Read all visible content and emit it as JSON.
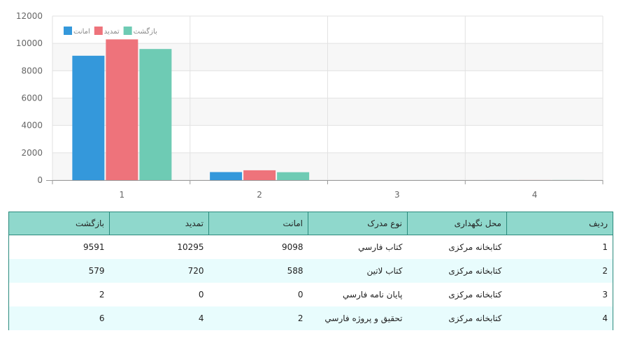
{
  "chart_data": {
    "type": "bar",
    "categories": [
      "1",
      "2",
      "3",
      "4"
    ],
    "series": [
      {
        "name": "امانت",
        "values": [
          9098,
          588,
          0,
          2
        ],
        "color": "#3498db"
      },
      {
        "name": "تمديد",
        "values": [
          10295,
          720,
          0,
          4
        ],
        "color": "#ee737b"
      },
      {
        "name": "بازگشت",
        "values": [
          9591,
          579,
          2,
          6
        ],
        "color": "#6ecbb4"
      }
    ],
    "ylim": [
      0,
      12000
    ],
    "yticks": [
      "0",
      "2000",
      "4000",
      "6000",
      "8000",
      "10000",
      "12000"
    ],
    "grid": true,
    "legend_position": "top-left"
  },
  "table": {
    "headers": [
      "رديف",
      "محل نگهداری",
      "نوع مدرک",
      "امانت",
      "تمديد",
      "بازگشت"
    ],
    "rows": [
      [
        "1",
        "كتابخانه مركزی",
        "كتاب فارسي",
        "9098",
        "10295",
        "9591"
      ],
      [
        "2",
        "كتابخانه مركزی",
        "كتاب لاتين",
        "588",
        "720",
        "579"
      ],
      [
        "3",
        "كتابخانه مركزی",
        "پايان نامه فارسي",
        "0",
        "0",
        "2"
      ],
      [
        "4",
        "كتابخانه مركزی",
        "تحقيق و پروژه فارسي",
        "2",
        "4",
        "6"
      ]
    ]
  }
}
